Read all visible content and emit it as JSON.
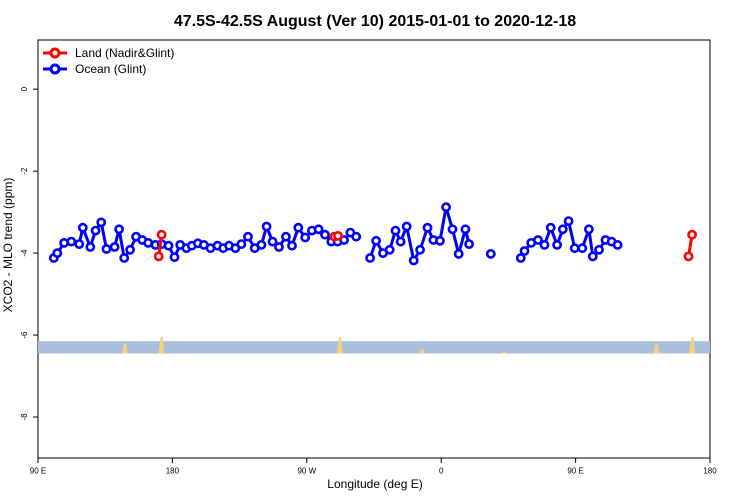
{
  "chart_data": {
    "type": "line",
    "title": "47.5S-42.5S August (Ver 10)   2015-01-01 to 2020-12-18",
    "xlabel": "Longitude (deg E)",
    "ylabel": "XCO2 - MLO trend (ppm)",
    "xlim": [
      90,
      540
    ],
    "ylim": [
      -9.0,
      1.2
    ],
    "x_ticks": [
      {
        "value": 90,
        "label": "90 E"
      },
      {
        "value": 180,
        "label": "180"
      },
      {
        "value": 270,
        "label": "90 W"
      },
      {
        "value": 360,
        "label": "0"
      },
      {
        "value": 450,
        "label": "90 E"
      },
      {
        "value": 540,
        "label": "180"
      }
    ],
    "y_ticks": [
      {
        "value": 0,
        "label": "0"
      },
      {
        "value": -2,
        "label": "-2"
      },
      {
        "value": -4,
        "label": "-4"
      },
      {
        "value": -6,
        "label": "-6"
      },
      {
        "value": -8,
        "label": "-8"
      }
    ],
    "legend_position": "top-left",
    "land_band": {
      "y_range": [
        -6.15,
        -6.45
      ],
      "color": "#a9bfdc"
    },
    "land_patch_color": "#f7d27a",
    "land_patches": [
      {
        "lon": 148,
        "ymax": -6.2
      },
      {
        "lon": 172.5,
        "ymax": -6.05
      },
      {
        "lon": 292,
        "ymax": -6.05
      },
      {
        "lon": 347,
        "ymax": -6.35
      },
      {
        "lon": 402,
        "ymax": -6.4
      },
      {
        "lon": 504,
        "ymax": -6.2
      },
      {
        "lon": 528,
        "ymax": -6.05
      }
    ],
    "series": [
      {
        "name": "Land (Nadir&Glint)",
        "color": "#ff0000",
        "segments": [
          [
            [
              170.8,
              -4.08
            ],
            [
              172.8,
              -3.55
            ]
          ],
          [
            [
              288.5,
              -3.6
            ],
            [
              290.9,
              -3.58
            ]
          ],
          [
            [
              525.6,
              -4.08
            ],
            [
              528.0,
              -3.55
            ]
          ]
        ]
      },
      {
        "name": "Ocean (Glint)",
        "color": "#0000ff",
        "segments": [
          [
            [
              100.6,
              -4.12
            ],
            [
              102.9,
              -4.0
            ],
            [
              107.5,
              -3.75
            ],
            [
              112.3,
              -3.72
            ],
            [
              117.6,
              -3.78
            ],
            [
              120.0,
              -3.38
            ],
            [
              125.0,
              -3.85
            ],
            [
              128.6,
              -3.45
            ],
            [
              132.3,
              -3.25
            ],
            [
              135.9,
              -3.9
            ],
            [
              141.3,
              -3.85
            ],
            [
              144.3,
              -3.42
            ],
            [
              147.7,
              -4.12
            ],
            [
              151.7,
              -3.92
            ],
            [
              155.7,
              -3.6
            ],
            [
              159.8,
              -3.68
            ],
            [
              163.8,
              -3.75
            ],
            [
              168.6,
              -3.8
            ],
            [
              172.8,
              -3.78
            ],
            [
              177.4,
              -3.82
            ],
            [
              181.4,
              -4.1
            ],
            [
              185.2,
              -3.8
            ],
            [
              189.4,
              -3.88
            ],
            [
              193.0,
              -3.82
            ],
            [
              197.1,
              -3.76
            ],
            [
              201.1,
              -3.8
            ],
            [
              205.5,
              -3.88
            ],
            [
              210.2,
              -3.82
            ],
            [
              214.0,
              -3.88
            ],
            [
              218.0,
              -3.82
            ],
            [
              222.2,
              -3.88
            ],
            [
              226.2,
              -3.78
            ],
            [
              230.6,
              -3.6
            ],
            [
              235.1,
              -3.88
            ],
            [
              239.6,
              -3.8
            ],
            [
              243.1,
              -3.35
            ],
            [
              247.1,
              -3.72
            ],
            [
              251.4,
              -3.85
            ],
            [
              256.0,
              -3.6
            ],
            [
              260.1,
              -3.82
            ],
            [
              264.3,
              -3.38
            ],
            [
              268.9,
              -3.62
            ],
            [
              273.4,
              -3.45
            ],
            [
              277.9,
              -3.42
            ],
            [
              282.2,
              -3.55
            ],
            [
              286.4,
              -3.72
            ],
            [
              290.6,
              -3.72
            ],
            [
              295.0,
              -3.68
            ],
            [
              299.2,
              -3.5
            ],
            [
              303.1,
              -3.6
            ]
          ],
          [
            [
              312.4,
              -4.12
            ],
            [
              316.4,
              -3.7
            ],
            [
              321.0,
              -4.0
            ],
            [
              325.5,
              -3.92
            ],
            [
              329.4,
              -3.45
            ],
            [
              332.8,
              -3.72
            ],
            [
              336.9,
              -3.35
            ],
            [
              341.6,
              -4.18
            ],
            [
              345.9,
              -3.92
            ],
            [
              350.8,
              -3.38
            ],
            [
              354.8,
              -3.68
            ],
            [
              359.2,
              -3.7
            ],
            [
              363.3,
              -2.88
            ],
            [
              367.6,
              -3.42
            ],
            [
              371.7,
              -4.02
            ],
            [
              376.2,
              -3.42
            ],
            [
              378.7,
              -3.78
            ]
          ],
          [
            [
              393.2,
              -4.02
            ]
          ],
          [
            [
              413.3,
              -4.12
            ],
            [
              415.8,
              -3.95
            ],
            [
              420.3,
              -3.75
            ],
            [
              424.8,
              -3.68
            ],
            [
              429.2,
              -3.8
            ],
            [
              433.3,
              -3.38
            ],
            [
              437.6,
              -3.8
            ],
            [
              441.4,
              -3.42
            ],
            [
              445.3,
              -3.22
            ],
            [
              449.4,
              -3.88
            ],
            [
              454.5,
              -3.88
            ],
            [
              458.9,
              -3.42
            ],
            [
              461.5,
              -4.08
            ],
            [
              465.7,
              -3.92
            ],
            [
              470.0,
              -3.68
            ],
            [
              474.1,
              -3.72
            ],
            [
              478.1,
              -3.8
            ]
          ]
        ]
      }
    ]
  }
}
